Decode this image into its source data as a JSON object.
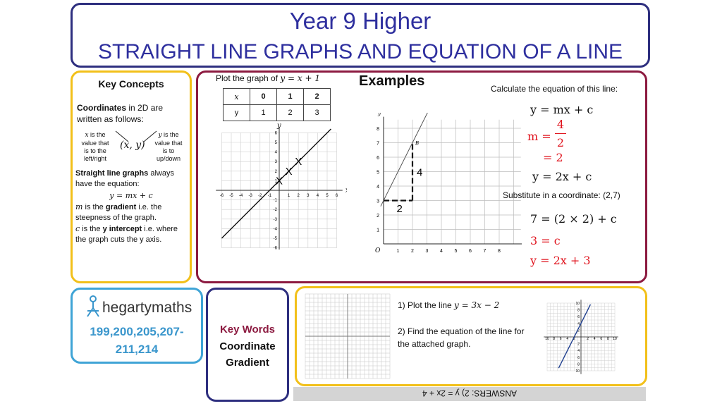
{
  "header": {
    "line1": "Year 9 Higher",
    "line2": "STRAIGHT LINE GRAPHS AND EQUATION OF A LINE"
  },
  "key_concepts": {
    "heading": "Key Concepts",
    "coord_bold": "Coordinates",
    "coord_rest": " in 2D are written as follows:",
    "x_desc": "is the value that is to the left/right",
    "xy_pair": "(x, y)",
    "y_desc": "is the value that is to up/down",
    "straight_bold": "Straight line graphs",
    "straight_rest": " always have the equation:",
    "equation": "y = mx + c",
    "m_pre": " is the ",
    "m_bold": "gradient",
    "m_rest": " i.e. the steepness of the graph.",
    "c_pre": " is the ",
    "c_bold": "y intercept",
    "c_rest": " i.e. where the graph cuts the y axis."
  },
  "examples": {
    "heading": "Examples",
    "plot_prompt_text": "Plot the graph of ",
    "plot_prompt_math": "y = x + 1",
    "table": {
      "x_label": "x",
      "y_label": "y",
      "x_values": [
        "0",
        "1",
        "2"
      ],
      "y_values": [
        "1",
        "2",
        "3"
      ]
    },
    "graph1": {
      "x_axis_label": "x",
      "y_axis_label": "y",
      "x_ticks": [
        "-6",
        "-5",
        "-4",
        "-3",
        "-2",
        "-1",
        "1",
        "2",
        "3",
        "4",
        "5",
        "6"
      ],
      "y_ticks": [
        "6",
        "5",
        "4",
        "3",
        "2",
        "1",
        "-1",
        "-2",
        "-3",
        "-4",
        "-5",
        "-6"
      ],
      "plotted_marker": "X"
    },
    "graph2": {
      "origin_label": "O",
      "x_axis_label": "x",
      "y_axis_label": "y",
      "x_ticks": [
        "1",
        "2",
        "3",
        "4",
        "5",
        "6",
        "7",
        "8"
      ],
      "y_ticks": [
        "8",
        "7",
        "6",
        "5",
        "4",
        "3",
        "2",
        "1"
      ],
      "point_label": "B",
      "rise_label": "4",
      "run_label": "2"
    },
    "calc_prompt": "Calculate the equation of this line:",
    "eq_general": "y = mx + c",
    "m_label": "m =",
    "m_num": "4",
    "m_den": "2",
    "m_result": "= 2",
    "eq_with_m": "y = 2x + c",
    "substitute_text": "Substitute in a coordinate: (2,7)",
    "substitution": "7 = (2 × 2) + c",
    "c_result": "3 = c",
    "final_eq": "y = 2x + 3"
  },
  "hegarty": {
    "logo_text": "hegartymaths",
    "codes_line1": "199,200,205,207-",
    "codes_line2": "211,214"
  },
  "key_words": {
    "heading": "Key Words",
    "words": [
      "Coordinate",
      "Gradient"
    ]
  },
  "practice": {
    "q1_text": "1)  Plot the line ",
    "q1_math": "y = 3x − 2",
    "q2_text": "2)  Find the equation of the line for the attached graph.",
    "graph_x_ticks": [
      "10",
      "8",
      "6",
      "4",
      "2",
      "2",
      "4",
      "6",
      "8",
      "10"
    ],
    "graph_y_ticks": [
      "10",
      "8",
      "6",
      "4",
      "2",
      "2",
      "4",
      "6",
      "8",
      "10"
    ]
  },
  "answers": {
    "text": "ANSWERS: 2) y = 2x + 4"
  },
  "colors": {
    "title": "#2e2f9e",
    "navy": "#2e2f7f",
    "gold": "#f2c01a",
    "maroon": "#8c1a40",
    "blue": "#3fa4d6",
    "red": "#e0141e"
  }
}
